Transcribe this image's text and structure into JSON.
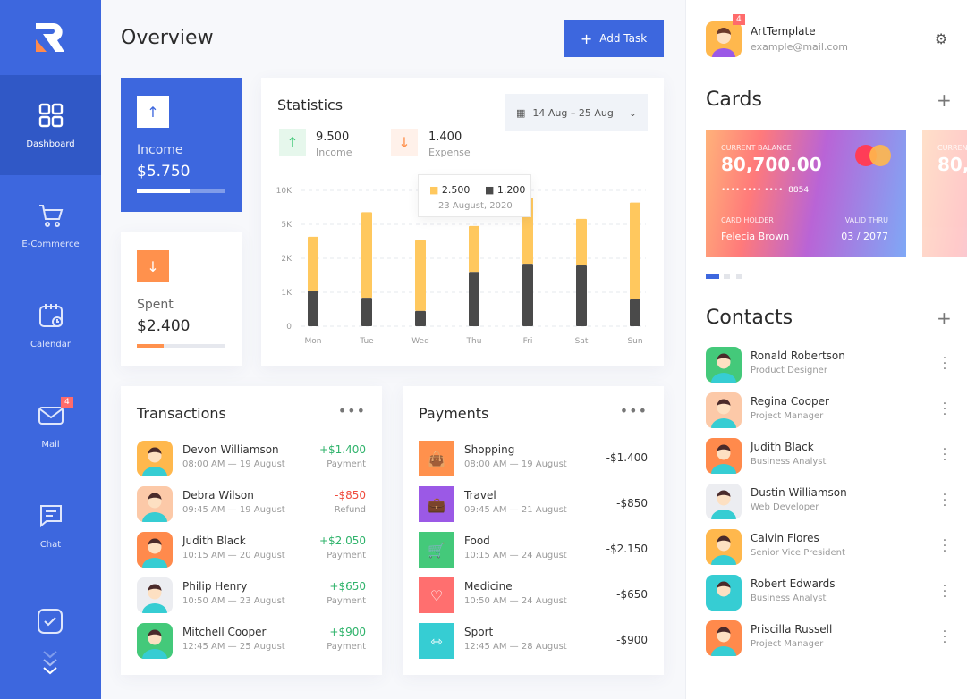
{
  "sidebar": {
    "items": [
      {
        "label": "Dashboard"
      },
      {
        "label": "E-Commerce"
      },
      {
        "label": "Calendar"
      },
      {
        "label": "Mail",
        "badge": "4"
      },
      {
        "label": "Chat"
      }
    ]
  },
  "header": {
    "title": "Overview",
    "add_task": "Add Task"
  },
  "income_card": {
    "label": "Income",
    "value": "$5.750",
    "progress": 0.6
  },
  "spent_card": {
    "label": "Spent",
    "value": "$2.400",
    "progress": 0.3
  },
  "statistics": {
    "title": "Statistics",
    "date_range": "14 Aug – 25 Aug",
    "income_value": "9.500",
    "income_label": "Income",
    "expense_value": "1.400",
    "expense_label": "Expense",
    "tooltip": {
      "income": "2.500",
      "expense": "1.200",
      "date": "23 August, 2020"
    }
  },
  "chart_data": {
    "type": "bar",
    "stacked": true,
    "categories": [
      "Mon",
      "Tue",
      "Wed",
      "Thu",
      "Fri",
      "Sat",
      "Sun"
    ],
    "yticks": [
      "0",
      "1K",
      "2K",
      "5K",
      "10K"
    ],
    "ytick_values": [
      0,
      1000,
      2000,
      5000,
      10000
    ],
    "series": [
      {
        "name": "Expense",
        "color": "#4a4a4a",
        "values": [
          1050,
          840,
          450,
          1600,
          1840,
          1790,
          790
        ]
      },
      {
        "name": "Income",
        "color": "#ffc85e",
        "values": [
          2850,
          5960,
          3150,
          3250,
          7060,
          4010,
          7410
        ]
      }
    ]
  },
  "transactions": {
    "title": "Transactions",
    "items": [
      {
        "name": "Devon Williamson",
        "time": "08:00 AM",
        "date": "19 August",
        "amount": "+$1.400",
        "type": "Payment",
        "color": "#ffb84d",
        "pos": true
      },
      {
        "name": "Debra Wilson",
        "time": "09:45 AM",
        "date": "19 August",
        "amount": "-$850",
        "type": "Refund",
        "color": "#fcc9a8",
        "pos": false
      },
      {
        "name": "Judith Black",
        "time": "10:15 AM",
        "date": "20 August",
        "amount": "+$2.050",
        "type": "Payment",
        "color": "#ff8a4c",
        "pos": true
      },
      {
        "name": "Philip Henry",
        "time": "10:50 AM",
        "date": "23 August",
        "amount": "+$650",
        "type": "Payment",
        "color": "#ecedf1",
        "pos": true
      },
      {
        "name": "Mitchell Cooper",
        "time": "12:45 AM",
        "date": "25 August",
        "amount": "+$900",
        "type": "Payment",
        "color": "#44c97a",
        "pos": true
      }
    ]
  },
  "payments": {
    "title": "Payments",
    "items": [
      {
        "name": "Shopping",
        "time": "08:00 AM",
        "date": "19 August",
        "amount": "-$1.400",
        "color": "#ff914d",
        "icon": "bag"
      },
      {
        "name": "Travel",
        "time": "09:45 AM",
        "date": "21 August",
        "amount": "-$850",
        "color": "#9b59e6",
        "icon": "suitcase"
      },
      {
        "name": "Food",
        "time": "10:15 AM",
        "date": "24 August",
        "amount": "-$2.150",
        "color": "#44c97a",
        "icon": "cart"
      },
      {
        "name": "Medicine",
        "time": "10:50 AM",
        "date": "24 August",
        "amount": "-$650",
        "color": "#ff6f6f",
        "icon": "heart"
      },
      {
        "name": "Sport",
        "time": "12:45 AM",
        "date": "28 August",
        "amount": "-$900",
        "color": "#36cdd3",
        "icon": "dumbbell"
      }
    ]
  },
  "profile": {
    "name": "ArtTemplate",
    "email": "example@mail.com",
    "badge": "4"
  },
  "cards": {
    "title": "Cards",
    "balance_label": "CURRENT BALANCE",
    "balance": "80,700.00",
    "masked": "•••• •••• ••••",
    "last4": "8854",
    "holder_label": "CARD HOLDER",
    "holder": "Felecia Brown",
    "valid_label": "VALID THRU",
    "valid": "03 / 2077"
  },
  "contacts": {
    "title": "Contacts",
    "items": [
      {
        "name": "Ronald Robertson",
        "role": "Product Designer",
        "color": "#44c97a"
      },
      {
        "name": "Regina Cooper",
        "role": "Project Manager",
        "color": "#fcc9a8"
      },
      {
        "name": "Judith Black",
        "role": "Business Analyst",
        "color": "#ff8a4c"
      },
      {
        "name": "Dustin Williamson",
        "role": "Web Developer",
        "color": "#ecedf1"
      },
      {
        "name": "Calvin Flores",
        "role": "Senior Vice President",
        "color": "#ffb84d"
      },
      {
        "name": "Robert Edwards",
        "role": "Business Analyst",
        "color": "#36cdd3"
      },
      {
        "name": "Priscilla Russell",
        "role": "Project Manager",
        "color": "#ff8a4c"
      }
    ]
  }
}
